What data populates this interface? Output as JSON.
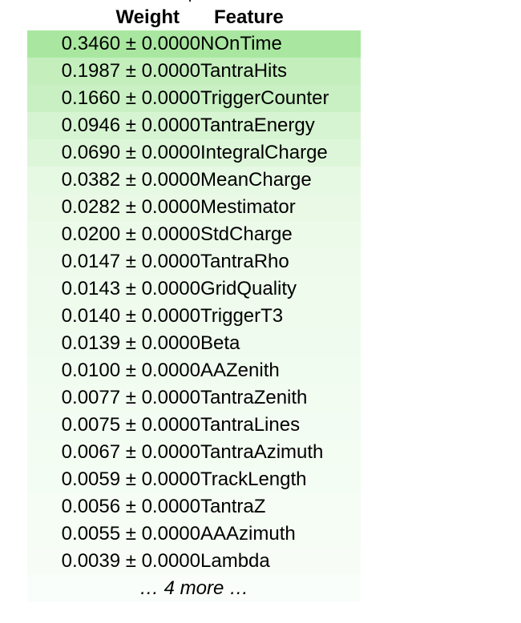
{
  "table": {
    "header_weight": "Weight",
    "header_feature": "Feature",
    "rows": [
      {
        "weight": "0.3460 ± 0.0000",
        "feature": "NOnTime",
        "bg": "#a9e7a0"
      },
      {
        "weight": "0.1987 ± 0.0000",
        "feature": "TantraHits",
        "bg": "#c4efbd"
      },
      {
        "weight": "0.1660 ± 0.0000",
        "feature": "TriggerCounter",
        "bg": "#c9f0c3"
      },
      {
        "weight": "0.0946 ± 0.0000",
        "feature": "TantraEnergy",
        "bg": "#d7f4d2"
      },
      {
        "weight": "0.0690 ± 0.0000",
        "feature": "IntegralCharge",
        "bg": "#ddf6d9"
      },
      {
        "weight": "0.0382 ± 0.0000",
        "feature": "MeanCharge",
        "bg": "#e6f9e3"
      },
      {
        "weight": "0.0282 ± 0.0000",
        "feature": "Mestimator",
        "bg": "#e9f9e6"
      },
      {
        "weight": "0.0200 ± 0.0000",
        "feature": "StdCharge",
        "bg": "#ecfaea"
      },
      {
        "weight": "0.0147 ± 0.0000",
        "feature": "TantraRho",
        "bg": "#eefbec"
      },
      {
        "weight": "0.0143 ± 0.0000",
        "feature": "GridQuality",
        "bg": "#eefbed"
      },
      {
        "weight": "0.0140 ± 0.0000",
        "feature": "TriggerT3",
        "bg": "#effbed"
      },
      {
        "weight": "0.0139 ± 0.0000",
        "feature": "Beta",
        "bg": "#effbee"
      },
      {
        "weight": "0.0100 ± 0.0000",
        "feature": "AAZenith",
        "bg": "#f1fcf0"
      },
      {
        "weight": "0.0077 ± 0.0000",
        "feature": "TantraZenith",
        "bg": "#f2fcf1"
      },
      {
        "weight": "0.0075 ± 0.0000",
        "feature": "TantraLines",
        "bg": "#f3fcf2"
      },
      {
        "weight": "0.0067 ± 0.0000",
        "feature": "TantraAzimuth",
        "bg": "#f3fdf2"
      },
      {
        "weight": "0.0059 ± 0.0000",
        "feature": "TrackLength",
        "bg": "#f4fdf3"
      },
      {
        "weight": "0.0056 ± 0.0000",
        "feature": "TantraZ",
        "bg": "#f5fdf4"
      },
      {
        "weight": "0.0055 ± 0.0000",
        "feature": "AAAzimuth",
        "bg": "#f5fdf4"
      },
      {
        "weight": "0.0039 ± 0.0000",
        "feature": "Lambda",
        "bg": "#f7fdf6"
      }
    ],
    "more_text": "… 4 more …"
  }
}
